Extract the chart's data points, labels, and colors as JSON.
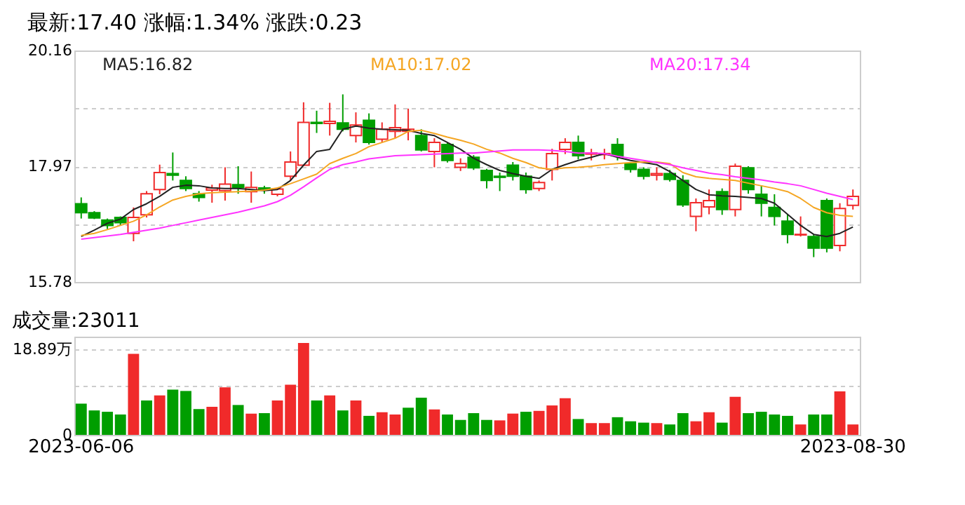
{
  "chart_data": [
    {
      "type": "candlestick",
      "title": "最新:17.40  涨幅:1.34%  涨跌:0.23",
      "categories": [
        "2023-06-06",
        null,
        null,
        null,
        null,
        null,
        null,
        null,
        null,
        null,
        null,
        null,
        null,
        null,
        null,
        null,
        null,
        null,
        null,
        null,
        null,
        null,
        null,
        null,
        null,
        null,
        null,
        null,
        null,
        null,
        null,
        null,
        null,
        null,
        null,
        null,
        null,
        null,
        null,
        null,
        null,
        null,
        null,
        null,
        null,
        null,
        null,
        null,
        null,
        null,
        null,
        null,
        null,
        null,
        null,
        null,
        null,
        null,
        null,
        "2023-08-30"
      ],
      "ohlc": [
        [
          17.26,
          17.38,
          16.98,
          17.09
        ],
        [
          17.09,
          17.12,
          16.97,
          16.99
        ],
        [
          16.95,
          16.98,
          16.78,
          16.85
        ],
        [
          17.0,
          17.02,
          16.85,
          16.9
        ],
        [
          16.7,
          17.19,
          16.55,
          17.0
        ],
        [
          17.05,
          17.5,
          17.0,
          17.45
        ],
        [
          17.53,
          18.0,
          17.44,
          17.85
        ],
        [
          17.83,
          18.23,
          17.7,
          17.8
        ],
        [
          17.7,
          17.78,
          17.5,
          17.55
        ],
        [
          17.45,
          17.5,
          17.3,
          17.38
        ],
        [
          17.52,
          17.62,
          17.28,
          17.56
        ],
        [
          17.51,
          17.95,
          17.32,
          17.63
        ],
        [
          17.62,
          17.97,
          17.45,
          17.57
        ],
        [
          17.49,
          17.87,
          17.28,
          17.57
        ],
        [
          17.56,
          17.6,
          17.45,
          17.53
        ],
        [
          17.44,
          17.57,
          17.4,
          17.54
        ],
        [
          17.78,
          18.25,
          17.7,
          18.05
        ],
        [
          17.99,
          19.18,
          17.97,
          18.8
        ],
        [
          18.8,
          19.02,
          18.6,
          18.78
        ],
        [
          18.78,
          19.17,
          18.55,
          18.82
        ],
        [
          18.79,
          19.33,
          18.63,
          18.67
        ],
        [
          18.55,
          18.99,
          18.42,
          18.75
        ],
        [
          18.84,
          18.97,
          18.38,
          18.42
        ],
        [
          18.48,
          18.8,
          18.42,
          18.67
        ],
        [
          18.63,
          19.14,
          18.5,
          18.7
        ],
        [
          18.63,
          19.06,
          18.46,
          18.67
        ],
        [
          18.55,
          18.67,
          18.25,
          18.28
        ],
        [
          18.25,
          18.5,
          17.95,
          18.42
        ],
        [
          18.38,
          18.42,
          18.04,
          18.08
        ],
        [
          17.95,
          18.12,
          17.88,
          18.02
        ],
        [
          18.14,
          18.18,
          17.9,
          17.94
        ],
        [
          17.89,
          17.92,
          17.55,
          17.7
        ],
        [
          17.78,
          17.85,
          17.5,
          17.76
        ],
        [
          17.99,
          18.05,
          17.7,
          17.78
        ],
        [
          17.78,
          17.85,
          17.45,
          17.53
        ],
        [
          17.55,
          17.7,
          17.5,
          17.66
        ],
        [
          17.91,
          18.3,
          17.7,
          18.21
        ],
        [
          18.29,
          18.5,
          18.2,
          18.42
        ],
        [
          18.42,
          18.55,
          18.1,
          18.17
        ],
        [
          18.2,
          18.3,
          18.08,
          18.22
        ],
        [
          18.19,
          18.3,
          18.1,
          18.21
        ],
        [
          18.38,
          18.5,
          18.08,
          18.17
        ],
        [
          18.02,
          18.05,
          17.85,
          17.91
        ],
        [
          17.91,
          17.95,
          17.72,
          17.78
        ],
        [
          17.8,
          17.95,
          17.7,
          17.83
        ],
        [
          17.83,
          17.9,
          17.68,
          17.72
        ],
        [
          17.7,
          17.8,
          17.2,
          17.24
        ],
        [
          17.02,
          17.36,
          16.74,
          17.28
        ],
        [
          17.2,
          17.53,
          17.06,
          17.32
        ],
        [
          17.49,
          17.55,
          17.05,
          17.15
        ],
        [
          17.15,
          18.02,
          17.02,
          17.97
        ],
        [
          17.94,
          17.97,
          17.45,
          17.53
        ],
        [
          17.44,
          17.61,
          17.02,
          17.27
        ],
        [
          17.19,
          17.44,
          16.85,
          17.02
        ],
        [
          16.93,
          17.06,
          16.51,
          16.68
        ],
        [
          16.67,
          17.02,
          16.64,
          16.68
        ],
        [
          16.64,
          16.68,
          16.25,
          16.42
        ],
        [
          17.32,
          17.36,
          16.34,
          16.42
        ],
        [
          16.47,
          17.27,
          16.36,
          17.17
        ],
        [
          17.23,
          17.53,
          17.15,
          17.4
        ]
      ],
      "series": [
        {
          "name": "MA5:16.82",
          "type": "line",
          "color": "#222222",
          "values": [
            16.64,
            16.76,
            16.89,
            16.97,
            17.15,
            17.26,
            17.4,
            17.57,
            17.61,
            17.6,
            17.56,
            17.55,
            17.55,
            17.53,
            17.51,
            17.53,
            17.7,
            17.99,
            18.25,
            18.29,
            18.67,
            18.73,
            18.69,
            18.67,
            18.66,
            18.65,
            18.59,
            18.55,
            18.42,
            18.29,
            18.12,
            18.0,
            17.89,
            17.83,
            17.78,
            17.74,
            17.91,
            18.0,
            18.08,
            18.14,
            18.21,
            18.14,
            18.08,
            18.04,
            18.0,
            17.87,
            17.7,
            17.53,
            17.43,
            17.41,
            17.4,
            17.38,
            17.36,
            17.27,
            17.06,
            16.85,
            16.68,
            16.64,
            16.7,
            16.82
          ]
        },
        {
          "name": "MA10:17.02",
          "type": "line",
          "color": "#f5a623",
          "values": [
            16.66,
            16.7,
            16.77,
            16.85,
            16.93,
            17.05,
            17.2,
            17.33,
            17.4,
            17.45,
            17.47,
            17.48,
            17.49,
            17.5,
            17.52,
            17.56,
            17.64,
            17.73,
            17.82,
            18.02,
            18.12,
            18.21,
            18.34,
            18.42,
            18.5,
            18.63,
            18.65,
            18.59,
            18.52,
            18.46,
            18.39,
            18.29,
            18.22,
            18.12,
            18.04,
            17.94,
            17.91,
            17.94,
            17.95,
            17.97,
            18.0,
            18.02,
            18.04,
            18.05,
            18.05,
            18.02,
            17.85,
            17.77,
            17.74,
            17.72,
            17.7,
            17.65,
            17.6,
            17.55,
            17.49,
            17.36,
            17.19,
            17.09,
            17.04,
            17.02
          ]
        },
        {
          "name": "MA20:17.34",
          "type": "line",
          "color": "#ff33ff",
          "values": [
            16.59,
            16.62,
            16.65,
            16.68,
            16.72,
            16.76,
            16.8,
            16.85,
            16.9,
            16.95,
            17.0,
            17.05,
            17.1,
            17.16,
            17.22,
            17.3,
            17.42,
            17.58,
            17.75,
            17.91,
            18.0,
            18.05,
            18.11,
            18.14,
            18.17,
            18.18,
            18.19,
            18.2,
            18.21,
            18.22,
            18.22,
            18.24,
            18.26,
            18.28,
            18.28,
            18.28,
            18.27,
            18.25,
            18.22,
            18.22,
            18.21,
            18.16,
            18.12,
            18.08,
            18.04,
            18.0,
            17.94,
            17.89,
            17.84,
            17.81,
            17.77,
            17.74,
            17.71,
            17.67,
            17.64,
            17.6,
            17.53,
            17.46,
            17.4,
            17.34
          ]
        }
      ],
      "ylim": [
        15.78,
        20.16
      ],
      "yticks": [
        15.78,
        {
          "value": 16.875,
          "label": null
        },
        17.97,
        {
          "value": 19.065,
          "label": null
        },
        20.16
      ],
      "grid": "y",
      "legend": "top left",
      "tick_labels": "y"
    },
    {
      "type": "bar",
      "title": "成交量:23011",
      "categories": [
        "2023-06-06",
        null,
        null,
        null,
        null,
        null,
        null,
        null,
        null,
        null,
        null,
        null,
        null,
        null,
        null,
        null,
        null,
        null,
        null,
        null,
        null,
        null,
        null,
        null,
        null,
        null,
        null,
        null,
        null,
        null,
        null,
        null,
        null,
        null,
        null,
        null,
        null,
        null,
        null,
        null,
        null,
        null,
        null,
        null,
        null,
        null,
        null,
        null,
        null,
        null,
        null,
        null,
        null,
        null,
        null,
        null,
        null,
        null,
        null,
        "2023-08-30"
      ],
      "values": [
        6.9,
        5.4,
        5.1,
        4.5,
        17.9,
        7.6,
        8.7,
        10.0,
        9.7,
        5.7,
        6.2,
        10.5,
        6.6,
        4.7,
        4.8,
        7.6,
        11.1,
        20.3,
        7.6,
        8.7,
        5.4,
        7.6,
        4.2,
        5.0,
        4.5,
        6.0,
        8.2,
        5.6,
        4.5,
        3.3,
        4.8,
        3.3,
        3.2,
        4.7,
        5.1,
        5.3,
        6.5,
        8.1,
        3.5,
        2.6,
        2.6,
        3.9,
        3.0,
        2.7,
        2.6,
        2.3,
        4.8,
        3.0,
        5.0,
        2.7,
        8.4,
        4.8,
        5.1,
        4.5,
        4.2,
        2.3,
        4.5,
        4.5,
        9.6,
        2.3
      ],
      "colors": [
        "#009e00",
        "#009e00",
        "#009e00",
        "#009e00",
        "#f02a2a",
        "#009e00",
        "#f02a2a",
        "#009e00",
        "#009e00",
        "#009e00",
        "#f02a2a",
        "#f02a2a",
        "#009e00",
        "#f02a2a",
        "#009e00",
        "#f02a2a",
        "#f02a2a",
        "#f02a2a",
        "#009e00",
        "#f02a2a",
        "#009e00",
        "#f02a2a",
        "#009e00",
        "#f02a2a",
        "#f02a2a",
        "#009e00",
        "#009e00",
        "#f02a2a",
        "#009e00",
        "#009e00",
        "#009e00",
        "#009e00",
        "#f02a2a",
        "#f02a2a",
        "#009e00",
        "#f02a2a",
        "#f02a2a",
        "#f02a2a",
        "#009e00",
        "#f02a2a",
        "#f02a2a",
        "#009e00",
        "#009e00",
        "#009e00",
        "#f02a2a",
        "#009e00",
        "#009e00",
        "#f02a2a",
        "#f02a2a",
        "#009e00",
        "#f02a2a",
        "#009e00",
        "#009e00",
        "#009e00",
        "#009e00",
        "#f02a2a",
        "#009e00",
        "#009e00",
        "#f02a2a",
        "#f02a2a"
      ],
      "ylim": [
        0,
        21.7
      ],
      "yticks": [
        0,
        {
          "value": 10.9,
          "label": null
        },
        {
          "value": 18.89,
          "label": "18.89万"
        }
      ],
      "grid": "y"
    }
  ]
}
